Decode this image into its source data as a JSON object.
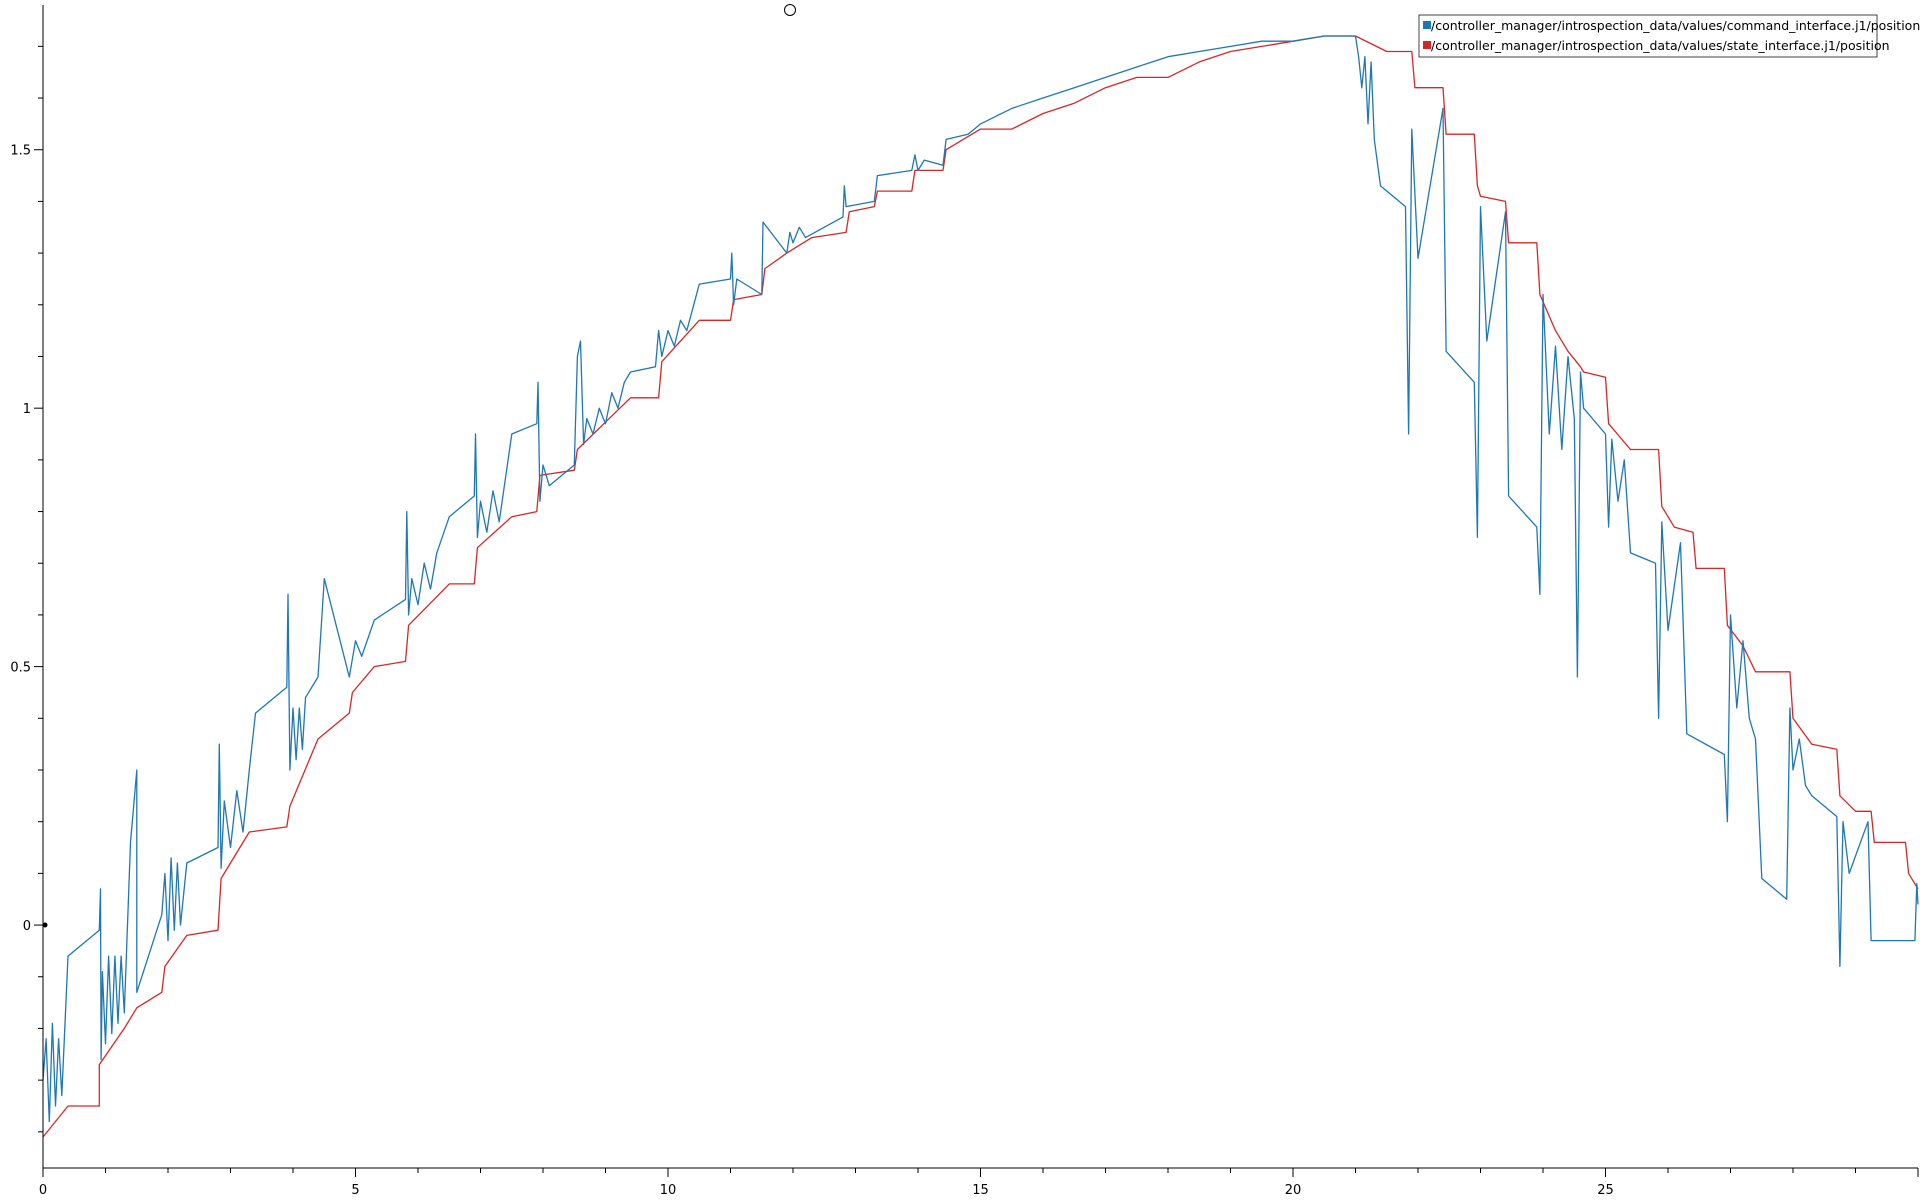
{
  "chart_data": {
    "type": "line",
    "title": "",
    "xlabel": "",
    "ylabel": "",
    "xlim": [
      0,
      30
    ],
    "ylim": [
      -0.47,
      1.78
    ],
    "x_ticks": [
      {
        "v": 0,
        "label": "0"
      },
      {
        "v": 5,
        "label": "5"
      },
      {
        "v": 10,
        "label": "10"
      },
      {
        "v": 15,
        "label": "15"
      },
      {
        "v": 20,
        "label": "20"
      },
      {
        "v": 25,
        "label": "25"
      }
    ],
    "y_ticks": [
      {
        "v": 0,
        "label": "0"
      },
      {
        "v": 0.5,
        "label": "0.5"
      },
      {
        "v": 1,
        "label": "1"
      },
      {
        "v": 1.5,
        "label": "1.5"
      }
    ],
    "grid": false,
    "legend_position": "top-right",
    "series": [
      {
        "name": "/controller_manager/introspection_data/values/command_interface.j1/position",
        "color": "#1f77b4",
        "points": [
          [
            0,
            -0.3
          ],
          [
            0.05,
            -0.22
          ],
          [
            0.1,
            -0.38
          ],
          [
            0.15,
            -0.19
          ],
          [
            0.2,
            -0.35
          ],
          [
            0.25,
            -0.22
          ],
          [
            0.3,
            -0.33
          ],
          [
            0.4,
            -0.06
          ],
          [
            0.9,
            -0.01
          ],
          [
            0.92,
            0.07
          ],
          [
            0.93,
            -0.26
          ],
          [
            0.95,
            -0.09
          ],
          [
            1.0,
            -0.23
          ],
          [
            1.05,
            -0.06
          ],
          [
            1.1,
            -0.21
          ],
          [
            1.15,
            -0.06
          ],
          [
            1.2,
            -0.19
          ],
          [
            1.25,
            -0.06
          ],
          [
            1.3,
            -0.17
          ],
          [
            1.4,
            0.16
          ],
          [
            1.5,
            0.3
          ],
          [
            1.5,
            -0.13
          ],
          [
            1.9,
            0.02
          ],
          [
            1.95,
            0.1
          ],
          [
            2.0,
            -0.03
          ],
          [
            2.05,
            0.13
          ],
          [
            2.1,
            -0.01
          ],
          [
            2.15,
            0.12
          ],
          [
            2.2,
            0.0
          ],
          [
            2.3,
            0.12
          ],
          [
            2.8,
            0.15
          ],
          [
            2.82,
            0.35
          ],
          [
            2.85,
            0.11
          ],
          [
            2.9,
            0.24
          ],
          [
            3.0,
            0.15
          ],
          [
            3.1,
            0.26
          ],
          [
            3.2,
            0.18
          ],
          [
            3.3,
            0.3
          ],
          [
            3.4,
            0.41
          ],
          [
            3.9,
            0.46
          ],
          [
            3.92,
            0.64
          ],
          [
            3.95,
            0.3
          ],
          [
            4.0,
            0.42
          ],
          [
            4.05,
            0.32
          ],
          [
            4.1,
            0.42
          ],
          [
            4.15,
            0.34
          ],
          [
            4.2,
            0.44
          ],
          [
            4.4,
            0.48
          ],
          [
            4.5,
            0.67
          ],
          [
            4.9,
            0.48
          ],
          [
            5.0,
            0.55
          ],
          [
            5.1,
            0.52
          ],
          [
            5.3,
            0.59
          ],
          [
            5.8,
            0.63
          ],
          [
            5.82,
            0.8
          ],
          [
            5.85,
            0.6
          ],
          [
            5.9,
            0.67
          ],
          [
            6.0,
            0.62
          ],
          [
            6.1,
            0.7
          ],
          [
            6.2,
            0.65
          ],
          [
            6.3,
            0.72
          ],
          [
            6.5,
            0.79
          ],
          [
            6.9,
            0.83
          ],
          [
            6.92,
            0.95
          ],
          [
            6.95,
            0.75
          ],
          [
            7.0,
            0.82
          ],
          [
            7.1,
            0.76
          ],
          [
            7.2,
            0.84
          ],
          [
            7.3,
            0.78
          ],
          [
            7.5,
            0.95
          ],
          [
            7.9,
            0.97
          ],
          [
            7.92,
            1.05
          ],
          [
            7.95,
            0.82
          ],
          [
            8.0,
            0.89
          ],
          [
            8.1,
            0.85
          ],
          [
            8.5,
            0.89
          ],
          [
            8.55,
            1.1
          ],
          [
            8.6,
            1.13
          ],
          [
            8.65,
            0.93
          ],
          [
            8.7,
            0.98
          ],
          [
            8.8,
            0.95
          ],
          [
            8.9,
            1.0
          ],
          [
            9.0,
            0.97
          ],
          [
            9.1,
            1.03
          ],
          [
            9.2,
            1.0
          ],
          [
            9.3,
            1.05
          ],
          [
            9.4,
            1.07
          ],
          [
            9.8,
            1.08
          ],
          [
            9.85,
            1.15
          ],
          [
            9.9,
            1.1
          ],
          [
            10.0,
            1.15
          ],
          [
            10.1,
            1.12
          ],
          [
            10.2,
            1.17
          ],
          [
            10.3,
            1.15
          ],
          [
            10.5,
            1.24
          ],
          [
            11.0,
            1.25
          ],
          [
            11.02,
            1.3
          ],
          [
            11.05,
            1.2
          ],
          [
            11.1,
            1.25
          ],
          [
            11.5,
            1.22
          ],
          [
            11.52,
            1.36
          ],
          [
            11.9,
            1.3
          ],
          [
            11.95,
            1.34
          ],
          [
            12.0,
            1.32
          ],
          [
            12.1,
            1.35
          ],
          [
            12.2,
            1.33
          ],
          [
            12.8,
            1.37
          ],
          [
            12.82,
            1.43
          ],
          [
            12.85,
            1.39
          ],
          [
            13.3,
            1.4
          ],
          [
            13.35,
            1.45
          ],
          [
            13.9,
            1.46
          ],
          [
            13.95,
            1.49
          ],
          [
            14.0,
            1.46
          ],
          [
            14.1,
            1.48
          ],
          [
            14.4,
            1.47
          ],
          [
            14.45,
            1.52
          ],
          [
            14.8,
            1.53
          ],
          [
            14.9,
            1.54
          ],
          [
            15.0,
            1.55
          ],
          [
            15.5,
            1.58
          ],
          [
            16.0,
            1.6
          ],
          [
            16.5,
            1.62
          ],
          [
            17.0,
            1.64
          ],
          [
            17.5,
            1.66
          ],
          [
            18.0,
            1.68
          ],
          [
            18.5,
            1.69
          ],
          [
            19.0,
            1.7
          ],
          [
            19.5,
            1.71
          ],
          [
            20.0,
            1.71
          ],
          [
            20.5,
            1.72
          ],
          [
            21.0,
            1.72
          ],
          [
            21.05,
            1.68
          ],
          [
            21.1,
            1.62
          ],
          [
            21.15,
            1.68
          ],
          [
            21.2,
            1.55
          ],
          [
            21.25,
            1.67
          ],
          [
            21.3,
            1.52
          ],
          [
            21.4,
            1.43
          ],
          [
            21.8,
            1.39
          ],
          [
            21.85,
            0.95
          ],
          [
            21.9,
            1.54
          ],
          [
            22.0,
            1.29
          ],
          [
            22.4,
            1.58
          ],
          [
            22.45,
            1.11
          ],
          [
            22.9,
            1.05
          ],
          [
            22.95,
            0.75
          ],
          [
            23.0,
            1.39
          ],
          [
            23.1,
            1.13
          ],
          [
            23.4,
            1.38
          ],
          [
            23.45,
            0.83
          ],
          [
            23.9,
            0.77
          ],
          [
            23.95,
            0.64
          ],
          [
            24.0,
            1.22
          ],
          [
            24.1,
            0.95
          ],
          [
            24.2,
            1.12
          ],
          [
            24.3,
            0.92
          ],
          [
            24.4,
            1.1
          ],
          [
            24.5,
            0.98
          ],
          [
            24.55,
            0.48
          ],
          [
            24.6,
            1.07
          ],
          [
            24.65,
            1.0
          ],
          [
            25.0,
            0.95
          ],
          [
            25.05,
            0.77
          ],
          [
            25.1,
            0.94
          ],
          [
            25.2,
            0.82
          ],
          [
            25.3,
            0.9
          ],
          [
            25.4,
            0.72
          ],
          [
            25.8,
            0.7
          ],
          [
            25.85,
            0.4
          ],
          [
            25.9,
            0.78
          ],
          [
            26.0,
            0.57
          ],
          [
            26.2,
            0.74
          ],
          [
            26.3,
            0.37
          ],
          [
            26.9,
            0.33
          ],
          [
            26.95,
            0.2
          ],
          [
            27.0,
            0.6
          ],
          [
            27.1,
            0.42
          ],
          [
            27.2,
            0.55
          ],
          [
            27.3,
            0.4
          ],
          [
            27.4,
            0.36
          ],
          [
            27.5,
            0.09
          ],
          [
            27.9,
            0.05
          ],
          [
            27.95,
            0.42
          ],
          [
            28.0,
            0.3
          ],
          [
            28.1,
            0.36
          ],
          [
            28.2,
            0.27
          ],
          [
            28.3,
            0.25
          ],
          [
            28.7,
            0.21
          ],
          [
            28.75,
            -0.08
          ],
          [
            28.8,
            0.2
          ],
          [
            28.9,
            0.1
          ],
          [
            29.2,
            0.2
          ],
          [
            29.25,
            -0.03
          ],
          [
            29.95,
            -0.03
          ],
          [
            29.98,
            0.08
          ],
          [
            30.0,
            0.04
          ]
        ]
      },
      {
        "name": "/controller_manager/introspection_data/values/state_interface.j1/position",
        "color": "#d62728",
        "points": [
          [
            0,
            -0.41
          ],
          [
            0.4,
            -0.35
          ],
          [
            0.9,
            -0.35
          ],
          [
            0.9,
            -0.27
          ],
          [
            1.3,
            -0.2
          ],
          [
            1.5,
            -0.16
          ],
          [
            1.9,
            -0.13
          ],
          [
            1.95,
            -0.08
          ],
          [
            2.3,
            -0.02
          ],
          [
            2.8,
            -0.01
          ],
          [
            2.85,
            0.09
          ],
          [
            3.3,
            0.18
          ],
          [
            3.9,
            0.19
          ],
          [
            3.95,
            0.23
          ],
          [
            4.4,
            0.36
          ],
          [
            4.9,
            0.41
          ],
          [
            4.95,
            0.45
          ],
          [
            5.3,
            0.5
          ],
          [
            5.8,
            0.51
          ],
          [
            5.85,
            0.58
          ],
          [
            6.5,
            0.66
          ],
          [
            6.9,
            0.66
          ],
          [
            6.95,
            0.73
          ],
          [
            7.5,
            0.79
          ],
          [
            7.9,
            0.8
          ],
          [
            7.95,
            0.87
          ],
          [
            8.5,
            0.88
          ],
          [
            8.55,
            0.92
          ],
          [
            9.4,
            1.02
          ],
          [
            9.85,
            1.02
          ],
          [
            9.9,
            1.09
          ],
          [
            10.5,
            1.17
          ],
          [
            11.0,
            1.17
          ],
          [
            11.05,
            1.21
          ],
          [
            11.5,
            1.22
          ],
          [
            11.55,
            1.27
          ],
          [
            11.9,
            1.3
          ],
          [
            12.3,
            1.33
          ],
          [
            12.85,
            1.34
          ],
          [
            12.9,
            1.38
          ],
          [
            13.3,
            1.39
          ],
          [
            13.35,
            1.42
          ],
          [
            13.9,
            1.42
          ],
          [
            13.95,
            1.46
          ],
          [
            14.4,
            1.46
          ],
          [
            14.45,
            1.5
          ],
          [
            15.0,
            1.54
          ],
          [
            15.5,
            1.54
          ],
          [
            16.0,
            1.57
          ],
          [
            16.5,
            1.59
          ],
          [
            17.0,
            1.62
          ],
          [
            17.5,
            1.64
          ],
          [
            18.0,
            1.64
          ],
          [
            18.5,
            1.67
          ],
          [
            19.0,
            1.69
          ],
          [
            19.5,
            1.7
          ],
          [
            20.0,
            1.71
          ],
          [
            20.5,
            1.72
          ],
          [
            21.0,
            1.72
          ],
          [
            21.5,
            1.69
          ],
          [
            21.9,
            1.69
          ],
          [
            21.95,
            1.62
          ],
          [
            22.4,
            1.62
          ],
          [
            22.45,
            1.53
          ],
          [
            22.9,
            1.53
          ],
          [
            22.95,
            1.43
          ],
          [
            23.0,
            1.41
          ],
          [
            23.4,
            1.4
          ],
          [
            23.45,
            1.32
          ],
          [
            23.9,
            1.32
          ],
          [
            23.95,
            1.22
          ],
          [
            24.2,
            1.15
          ],
          [
            24.4,
            1.11
          ],
          [
            24.6,
            1.08
          ],
          [
            24.65,
            1.07
          ],
          [
            25.0,
            1.06
          ],
          [
            25.05,
            0.97
          ],
          [
            25.4,
            0.92
          ],
          [
            25.85,
            0.92
          ],
          [
            25.9,
            0.81
          ],
          [
            26.1,
            0.77
          ],
          [
            26.4,
            0.76
          ],
          [
            26.45,
            0.69
          ],
          [
            26.9,
            0.69
          ],
          [
            26.95,
            0.58
          ],
          [
            27.2,
            0.54
          ],
          [
            27.4,
            0.49
          ],
          [
            27.95,
            0.49
          ],
          [
            28.0,
            0.4
          ],
          [
            28.3,
            0.35
          ],
          [
            28.7,
            0.34
          ],
          [
            28.75,
            0.25
          ],
          [
            29.0,
            0.22
          ],
          [
            29.25,
            0.22
          ],
          [
            29.3,
            0.16
          ],
          [
            29.8,
            0.16
          ],
          [
            29.85,
            0.1
          ],
          [
            30.0,
            0.07
          ]
        ]
      }
    ]
  }
}
